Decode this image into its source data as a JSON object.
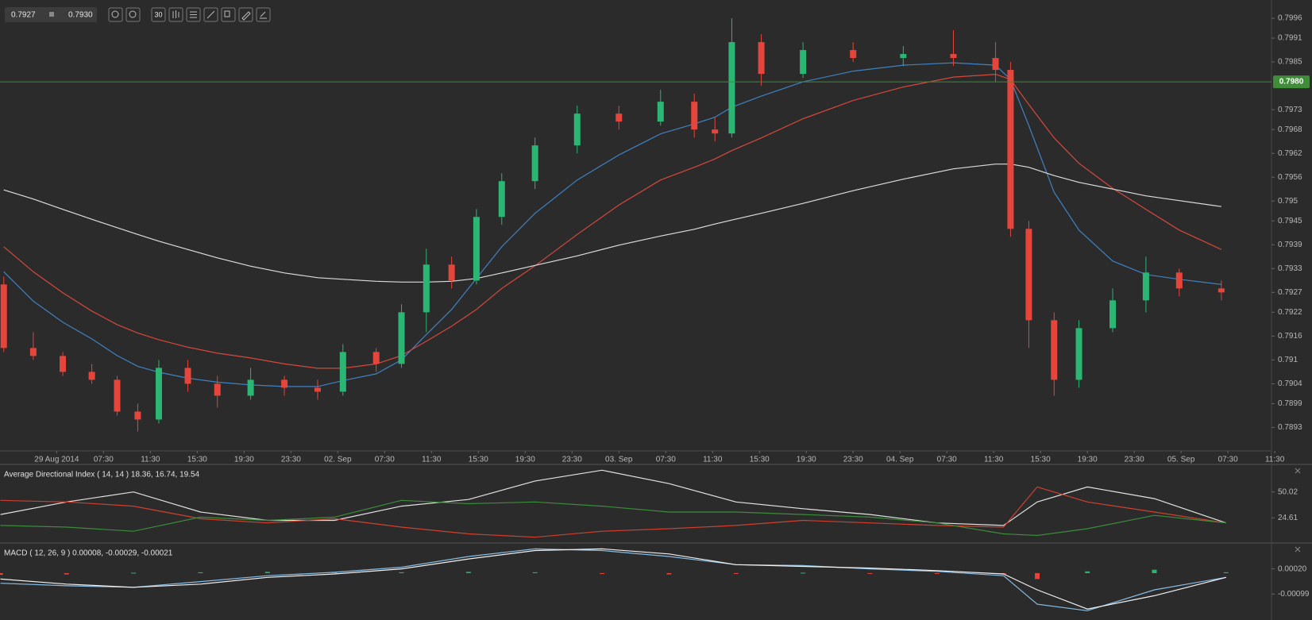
{
  "toolbar": {
    "bid": "0.7927",
    "ask": "0.7930",
    "interval": "30"
  },
  "chart_data": [
    {
      "type": "candlestick",
      "x": [
        -1.13,
        -0.5,
        0.13,
        0.75,
        1.29,
        1.73,
        2.18,
        2.8,
        3.43,
        4.14,
        4.86,
        5.57,
        6.11,
        6.82,
        7.36,
        7.89,
        8.43,
        8.96,
        9.5,
        10.21,
        11.11,
        12,
        12.89,
        13.61,
        14.05,
        14.41,
        15.04,
        15.93,
        17,
        18.07,
        19.14,
        20.04,
        20.36,
        20.75,
        21.29,
        21.82,
        22.54,
        23.25,
        23.96,
        24.86
      ],
      "open": [
        0.7929,
        0.7913,
        0.7911,
        0.7907,
        0.7905,
        0.7897,
        0.7895,
        0.7908,
        0.7904,
        0.7901,
        0.7905,
        0.7903,
        0.7902,
        0.7912,
        0.7909,
        0.7922,
        0.7934,
        0.793,
        0.7946,
        0.7955,
        0.7964,
        0.7972,
        0.797,
        0.7975,
        0.7968,
        0.7967,
        0.799,
        0.7982,
        0.7988,
        0.7986,
        0.7987,
        0.7986,
        0.7983,
        0.7943,
        0.792,
        0.7905,
        0.7918,
        0.7925,
        0.7932,
        0.7928
      ],
      "high": [
        0.7931,
        0.7917,
        0.7912,
        0.7909,
        0.7906,
        0.7899,
        0.791,
        0.791,
        0.7906,
        0.7908,
        0.7906,
        0.7905,
        0.7914,
        0.7913,
        0.7924,
        0.7938,
        0.7936,
        0.7948,
        0.7957,
        0.7966,
        0.7974,
        0.7974,
        0.7978,
        0.7977,
        0.7971,
        0.7996,
        0.7992,
        0.799,
        0.799,
        0.7989,
        0.7993,
        0.799,
        0.7985,
        0.7945,
        0.7922,
        0.792,
        0.7928,
        0.7936,
        0.7933,
        0.793
      ],
      "low": [
        0.7912,
        0.791,
        0.7906,
        0.7904,
        0.7896,
        0.7892,
        0.7894,
        0.7902,
        0.7898,
        0.79,
        0.7901,
        0.79,
        0.7901,
        0.7907,
        0.7908,
        0.7917,
        0.7928,
        0.7929,
        0.7944,
        0.7953,
        0.7962,
        0.7968,
        0.7969,
        0.7966,
        0.7965,
        0.7966,
        0.7979,
        0.7981,
        0.7985,
        0.7984,
        0.7984,
        0.798,
        0.7941,
        0.7913,
        0.7901,
        0.7903,
        0.7917,
        0.7922,
        0.7926,
        0.7925
      ],
      "close": [
        0.7913,
        0.7911,
        0.7907,
        0.7905,
        0.7897,
        0.7895,
        0.7908,
        0.7904,
        0.7901,
        0.7905,
        0.7903,
        0.7902,
        0.7912,
        0.7909,
        0.7922,
        0.7934,
        0.793,
        0.7946,
        0.7955,
        0.7964,
        0.7972,
        0.797,
        0.7975,
        0.7968,
        0.7967,
        0.799,
        0.7982,
        0.7988,
        0.7986,
        0.7987,
        0.7986,
        0.7983,
        0.7943,
        0.792,
        0.7905,
        0.7918,
        0.7925,
        0.7932,
        0.7928,
        0.7927
      ],
      "up_color": "#2bb673",
      "down_color": "#e5453b",
      "series": [
        {
          "color": "#3f82c4",
          "values": [
            0.79322,
            0.79248,
            0.79195,
            0.79153,
            0.79111,
            0.79084,
            0.79069,
            0.79054,
            0.79044,
            0.79037,
            0.79033,
            0.79033,
            0.79048,
            0.79065,
            0.791,
            0.79164,
            0.79227,
            0.79305,
            0.79385,
            0.79469,
            0.79553,
            0.79616,
            0.79669,
            0.79694,
            0.79711,
            0.79736,
            0.79764,
            0.798,
            0.79827,
            0.79842,
            0.79848,
            0.79842,
            0.79806,
            0.7969,
            0.79522,
            0.79427,
            0.79349,
            0.79315,
            0.79303,
            0.7929
          ]
        },
        {
          "color": "#d6483c",
          "values": [
            0.79385,
            0.79322,
            0.79269,
            0.79223,
            0.79189,
            0.79168,
            0.79151,
            0.79132,
            0.79117,
            0.79105,
            0.7909,
            0.79079,
            0.79079,
            0.7909,
            0.79111,
            0.79147,
            0.79185,
            0.79227,
            0.7928,
            0.79337,
            0.79416,
            0.7949,
            0.79553,
            0.79585,
            0.79606,
            0.79627,
            0.79659,
            0.79707,
            0.79753,
            0.79787,
            0.79812,
            0.79819,
            0.79806,
            0.79743,
            0.79659,
            0.79595,
            0.79532,
            0.79479,
            0.79427,
            0.79378
          ]
        },
        {
          "color": "#dcdcdc",
          "values": [
            0.79528,
            0.79505,
            0.79479,
            0.79454,
            0.79433,
            0.79416,
            0.79399,
            0.79378,
            0.79357,
            0.79336,
            0.79319,
            0.79307,
            0.79303,
            0.79298,
            0.79296,
            0.79296,
            0.79298,
            0.79305,
            0.79319,
            0.79338,
            0.79362,
            0.79389,
            0.79412,
            0.79429,
            0.79442,
            0.79452,
            0.79469,
            0.79494,
            0.79526,
            0.79555,
            0.79581,
            0.79593,
            0.79593,
            0.79585,
            0.79564,
            0.79547,
            0.7953,
            0.79513,
            0.79501,
            0.79486
          ]
        }
      ],
      "price_line": {
        "value": 0.798,
        "label": "0.7980"
      },
      "price_line_color": "#3f8d38",
      "xlim": [
        -1.21,
        25.93
      ],
      "xticks": [
        {
          "value": 0,
          "label": "29 Aug 2014"
        },
        {
          "value": 1,
          "label": "07:30"
        },
        {
          "value": 2,
          "label": "11:30"
        },
        {
          "value": 3,
          "label": "15:30"
        },
        {
          "value": 4,
          "label": "19:30"
        },
        {
          "value": 5,
          "label": "23:30"
        },
        {
          "value": 6,
          "label": "02. Sep"
        },
        {
          "value": 7,
          "label": "07:30"
        },
        {
          "value": 8,
          "label": "11:30"
        },
        {
          "value": 9,
          "label": "15:30"
        },
        {
          "value": 10,
          "label": "19:30"
        },
        {
          "value": 11,
          "label": "23:30"
        },
        {
          "value": 12,
          "label": "03. Sep"
        },
        {
          "value": 13,
          "label": "07:30"
        },
        {
          "value": 14,
          "label": "11:30"
        },
        {
          "value": 15,
          "label": "15:30"
        },
        {
          "value": 16,
          "label": "19:30"
        },
        {
          "value": 17,
          "label": "23:30"
        },
        {
          "value": 18,
          "label": "04. Sep"
        },
        {
          "value": 19,
          "label": "07:30"
        },
        {
          "value": 20,
          "label": "11:30"
        },
        {
          "value": 21,
          "label": "15:30"
        },
        {
          "value": 22,
          "label": "19:30"
        },
        {
          "value": 23,
          "label": "23:30"
        },
        {
          "value": 24,
          "label": "05. Sep"
        },
        {
          "value": 25,
          "label": "07:30"
        },
        {
          "value": 26,
          "label": "11:30"
        }
      ],
      "ylim": [
        0.78873,
        0.80006
      ],
      "yticks": [
        0.7996,
        0.7991,
        0.7985,
        0.7973,
        0.7968,
        0.7962,
        0.7956,
        0.795,
        0.7945,
        0.7939,
        0.7933,
        0.7927,
        0.7922,
        0.7916,
        0.791,
        0.7904,
        0.7899,
        0.7893
      ]
    },
    {
      "type": "line",
      "title": "Average Directional Index ( 14, 14 ) 18.36, 16.74, 19.54",
      "x": [
        -1.2,
        0.21,
        1.64,
        3.07,
        4.5,
        5.93,
        7.36,
        8.79,
        10.21,
        11.64,
        13.07,
        14.5,
        15.93,
        17.36,
        18.79,
        20.21,
        20.93,
        22,
        23.43,
        24.96
      ],
      "series": [
        {
          "color": "#e2e2e2",
          "values": [
            27.9,
            40.2,
            50.0,
            30.3,
            22.2,
            22.2,
            36.1,
            42.6,
            60.7,
            71.3,
            58.2,
            40.2,
            33.6,
            27.9,
            19.7,
            17.2,
            40.2,
            54.9,
            43.5,
            19.7
          ]
        },
        {
          "color": "#d0402f",
          "values": [
            41.8,
            40.2,
            36.1,
            23.8,
            19.7,
            23.8,
            15.6,
            9.0,
            5.7,
            11.5,
            14.0,
            17.2,
            22.2,
            19.7,
            17.2,
            15.6,
            54.9,
            40.2,
            30.3,
            19.7
          ]
        },
        {
          "color": "#3b8c3b",
          "values": [
            17.2,
            15.6,
            11.5,
            25.4,
            22.2,
            25.4,
            41.8,
            38.5,
            40.2,
            36.1,
            30.3,
            30.3,
            27.9,
            25.4,
            19.7,
            9.0,
            7.4,
            14.0,
            27.1,
            19.7
          ]
        }
      ],
      "xlim": [
        -1.21,
        25.93
      ],
      "ylim": [
        0.8,
        76.2
      ],
      "yticks": [
        50.02,
        24.61
      ]
    },
    {
      "type": "macd",
      "title": "MACD ( 12, 26, 9 ) 0.00008, -0.00029, -0.00021",
      "x": [
        -1.2,
        0.21,
        1.64,
        3.07,
        4.5,
        5.93,
        7.36,
        8.79,
        10.21,
        11.64,
        13.07,
        14.5,
        15.93,
        17.36,
        18.79,
        20.21,
        20.93,
        22,
        23.43,
        24.96
      ],
      "histogram": [
        -8e-05,
        -6e-05,
        2e-05,
        4e-05,
        6e-05,
        4e-05,
        4e-05,
        6e-05,
        4e-05,
        -4e-05,
        -6e-05,
        -2e-05,
        2e-05,
        -2e-05,
        -2e-05,
        -6e-05,
        -0.00028,
        8e-05,
        0.00016,
        4e-05
      ],
      "up_color": "#2bb673",
      "down_color": "#e5453b",
      "series": [
        {
          "color": "#86bde4",
          "values": [
            -0.00048,
            -0.0006,
            -0.00067,
            -0.0004,
            -0.00012,
            4e-05,
            0.00028,
            0.00079,
            0.00115,
            0.00107,
            0.00079,
            0.0004,
            0.00036,
            0.0002,
            8e-05,
            -0.00012,
            -0.00147,
            -0.00178,
            -0.00079,
            -0.0002
          ]
        },
        {
          "color": "#f0f0f0",
          "values": [
            -0.00028,
            -0.00052,
            -0.00067,
            -0.00052,
            -0.0002,
            -4e-05,
            0.0002,
            0.00067,
            0.00107,
            0.00115,
            0.00091,
            0.0004,
            0.00032,
            0.00024,
            0.00012,
            -4e-05,
            -0.00079,
            -0.0017,
            -0.00107,
            -0.0002
          ]
        }
      ],
      "xlim": [
        -1.21,
        25.93
      ],
      "ylim": [
        -0.00222,
        0.00139
      ],
      "yticks": [
        {
          "value": 0.0002,
          "label": "0.00020"
        },
        -0.00099
      ]
    }
  ]
}
